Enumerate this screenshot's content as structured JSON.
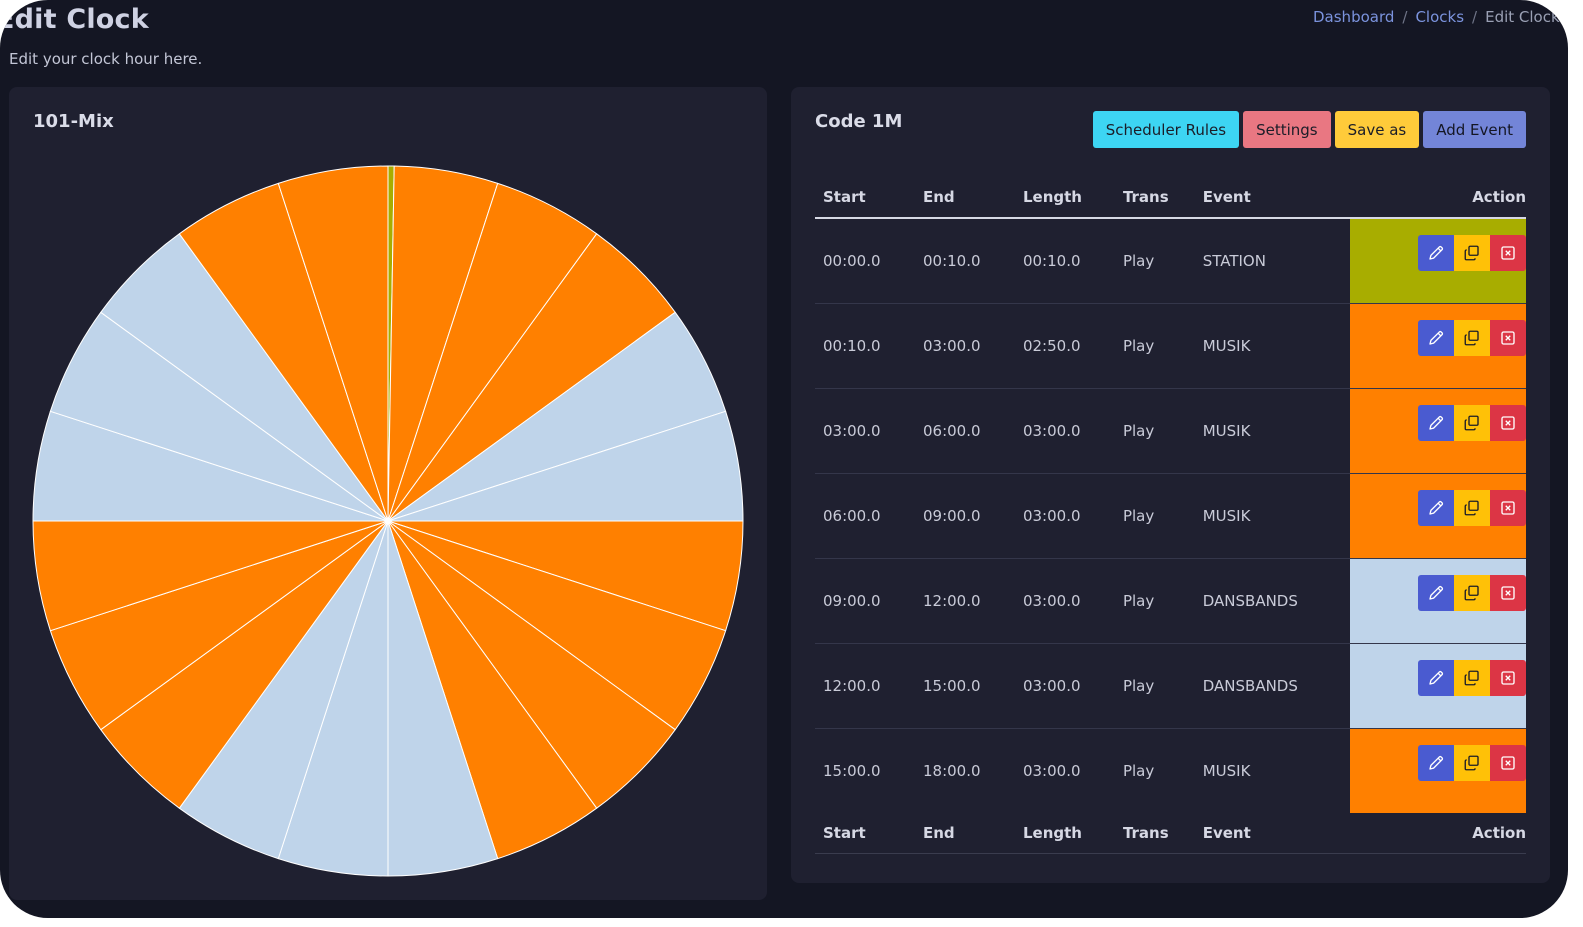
{
  "page": {
    "title": "Edit Clock",
    "subtitle": "Edit your clock hour here."
  },
  "breadcrumb": [
    {
      "label": "Dashboard"
    },
    {
      "label": "Clocks"
    },
    {
      "label": "Edit Clock"
    }
  ],
  "clock_card": {
    "title": "101-Mix"
  },
  "events_card": {
    "title": "Code 1M",
    "buttons": {
      "scheduler_rules": "Scheduler Rules",
      "settings": "Settings",
      "save_as": "Save as",
      "add_event": "Add Event"
    },
    "columns": {
      "start": "Start",
      "end": "End",
      "length": "Length",
      "trans": "Trans",
      "event": "Event",
      "action": "Action"
    },
    "rows": [
      {
        "start": "00:00.0",
        "end": "00:10.0",
        "length": "00:10.0",
        "trans": "Play",
        "event": "STATION",
        "color": "#a8ad00"
      },
      {
        "start": "00:10.0",
        "end": "03:00.0",
        "length": "02:50.0",
        "trans": "Play",
        "event": "MUSIK",
        "color": "#ff8000"
      },
      {
        "start": "03:00.0",
        "end": "06:00.0",
        "length": "03:00.0",
        "trans": "Play",
        "event": "MUSIK",
        "color": "#ff8000"
      },
      {
        "start": "06:00.0",
        "end": "09:00.0",
        "length": "03:00.0",
        "trans": "Play",
        "event": "MUSIK",
        "color": "#ff8000"
      },
      {
        "start": "09:00.0",
        "end": "12:00.0",
        "length": "03:00.0",
        "trans": "Play",
        "event": "DANSBANDS",
        "color": "#bfd4ea"
      },
      {
        "start": "12:00.0",
        "end": "15:00.0",
        "length": "03:00.0",
        "trans": "Play",
        "event": "DANSBANDS",
        "color": "#bfd4ea"
      },
      {
        "start": "15:00.0",
        "end": "18:00.0",
        "length": "03:00.0",
        "trans": "Play",
        "event": "MUSIK",
        "color": "#ff8000"
      }
    ],
    "icons": {
      "edit": "pencil-icon",
      "copy": "copy-icon",
      "delete": "close-box-icon"
    }
  },
  "chart_data": {
    "type": "pie",
    "title": "",
    "unit": "seconds of the hour",
    "total": 3600,
    "slices": [
      {
        "start_s": 0,
        "length_s": 10,
        "color": "#a8ad00"
      },
      {
        "start_s": 10,
        "length_s": 170,
        "color": "#ff8000"
      },
      {
        "start_s": 180,
        "length_s": 180,
        "color": "#ff8000"
      },
      {
        "start_s": 360,
        "length_s": 180,
        "color": "#ff8000"
      },
      {
        "start_s": 540,
        "length_s": 180,
        "color": "#bfd4ea"
      },
      {
        "start_s": 720,
        "length_s": 180,
        "color": "#bfd4ea"
      },
      {
        "start_s": 900,
        "length_s": 180,
        "color": "#ff8000"
      },
      {
        "start_s": 1080,
        "length_s": 180,
        "color": "#ff8000"
      },
      {
        "start_s": 1260,
        "length_s": 180,
        "color": "#ff8000"
      },
      {
        "start_s": 1440,
        "length_s": 180,
        "color": "#ff8000"
      },
      {
        "start_s": 1620,
        "length_s": 180,
        "color": "#bfd4ea"
      },
      {
        "start_s": 1800,
        "length_s": 180,
        "color": "#bfd4ea"
      },
      {
        "start_s": 1980,
        "length_s": 180,
        "color": "#bfd4ea"
      },
      {
        "start_s": 2160,
        "length_s": 180,
        "color": "#ff8000"
      },
      {
        "start_s": 2340,
        "length_s": 180,
        "color": "#ff8000"
      },
      {
        "start_s": 2520,
        "length_s": 180,
        "color": "#ff8000"
      },
      {
        "start_s": 2700,
        "length_s": 180,
        "color": "#bfd4ea"
      },
      {
        "start_s": 2880,
        "length_s": 180,
        "color": "#bfd4ea"
      },
      {
        "start_s": 3060,
        "length_s": 180,
        "color": "#bfd4ea"
      },
      {
        "start_s": 3240,
        "length_s": 180,
        "color": "#ff8000"
      },
      {
        "start_s": 3420,
        "length_s": 180,
        "color": "#ff8000"
      }
    ]
  }
}
